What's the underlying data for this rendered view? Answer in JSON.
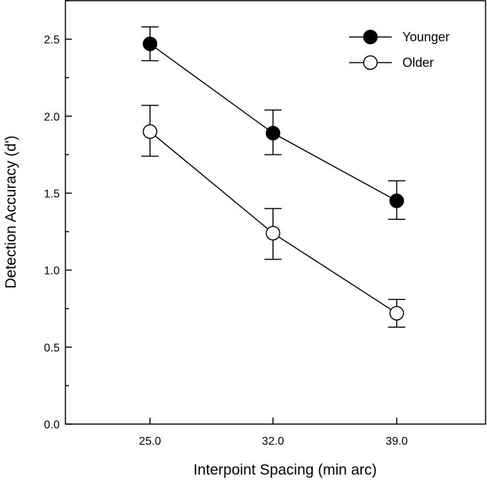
{
  "chart_data": {
    "type": "line",
    "title": "",
    "xlabel": "Interpoint Spacing (min arc)",
    "ylabel": "Detection Accuracy (d')",
    "categories": [
      "25.0",
      "32.0",
      "39.0"
    ],
    "ylim": [
      0.0,
      2.75
    ],
    "yticks": [
      "0.0",
      "0.5",
      "1.0",
      "1.5",
      "2.0",
      "2.5"
    ],
    "legend_position": "top-right",
    "series": [
      {
        "name": "Younger",
        "marker": "filled-circle",
        "values": [
          2.47,
          1.89,
          1.45
        ],
        "error_low": [
          2.36,
          1.75,
          1.33
        ],
        "error_high": [
          2.58,
          2.04,
          1.58
        ]
      },
      {
        "name": "Older",
        "marker": "open-circle",
        "values": [
          1.9,
          1.24,
          0.72
        ],
        "error_low": [
          1.74,
          1.07,
          0.63
        ],
        "error_high": [
          2.07,
          1.4,
          0.81
        ]
      }
    ]
  }
}
